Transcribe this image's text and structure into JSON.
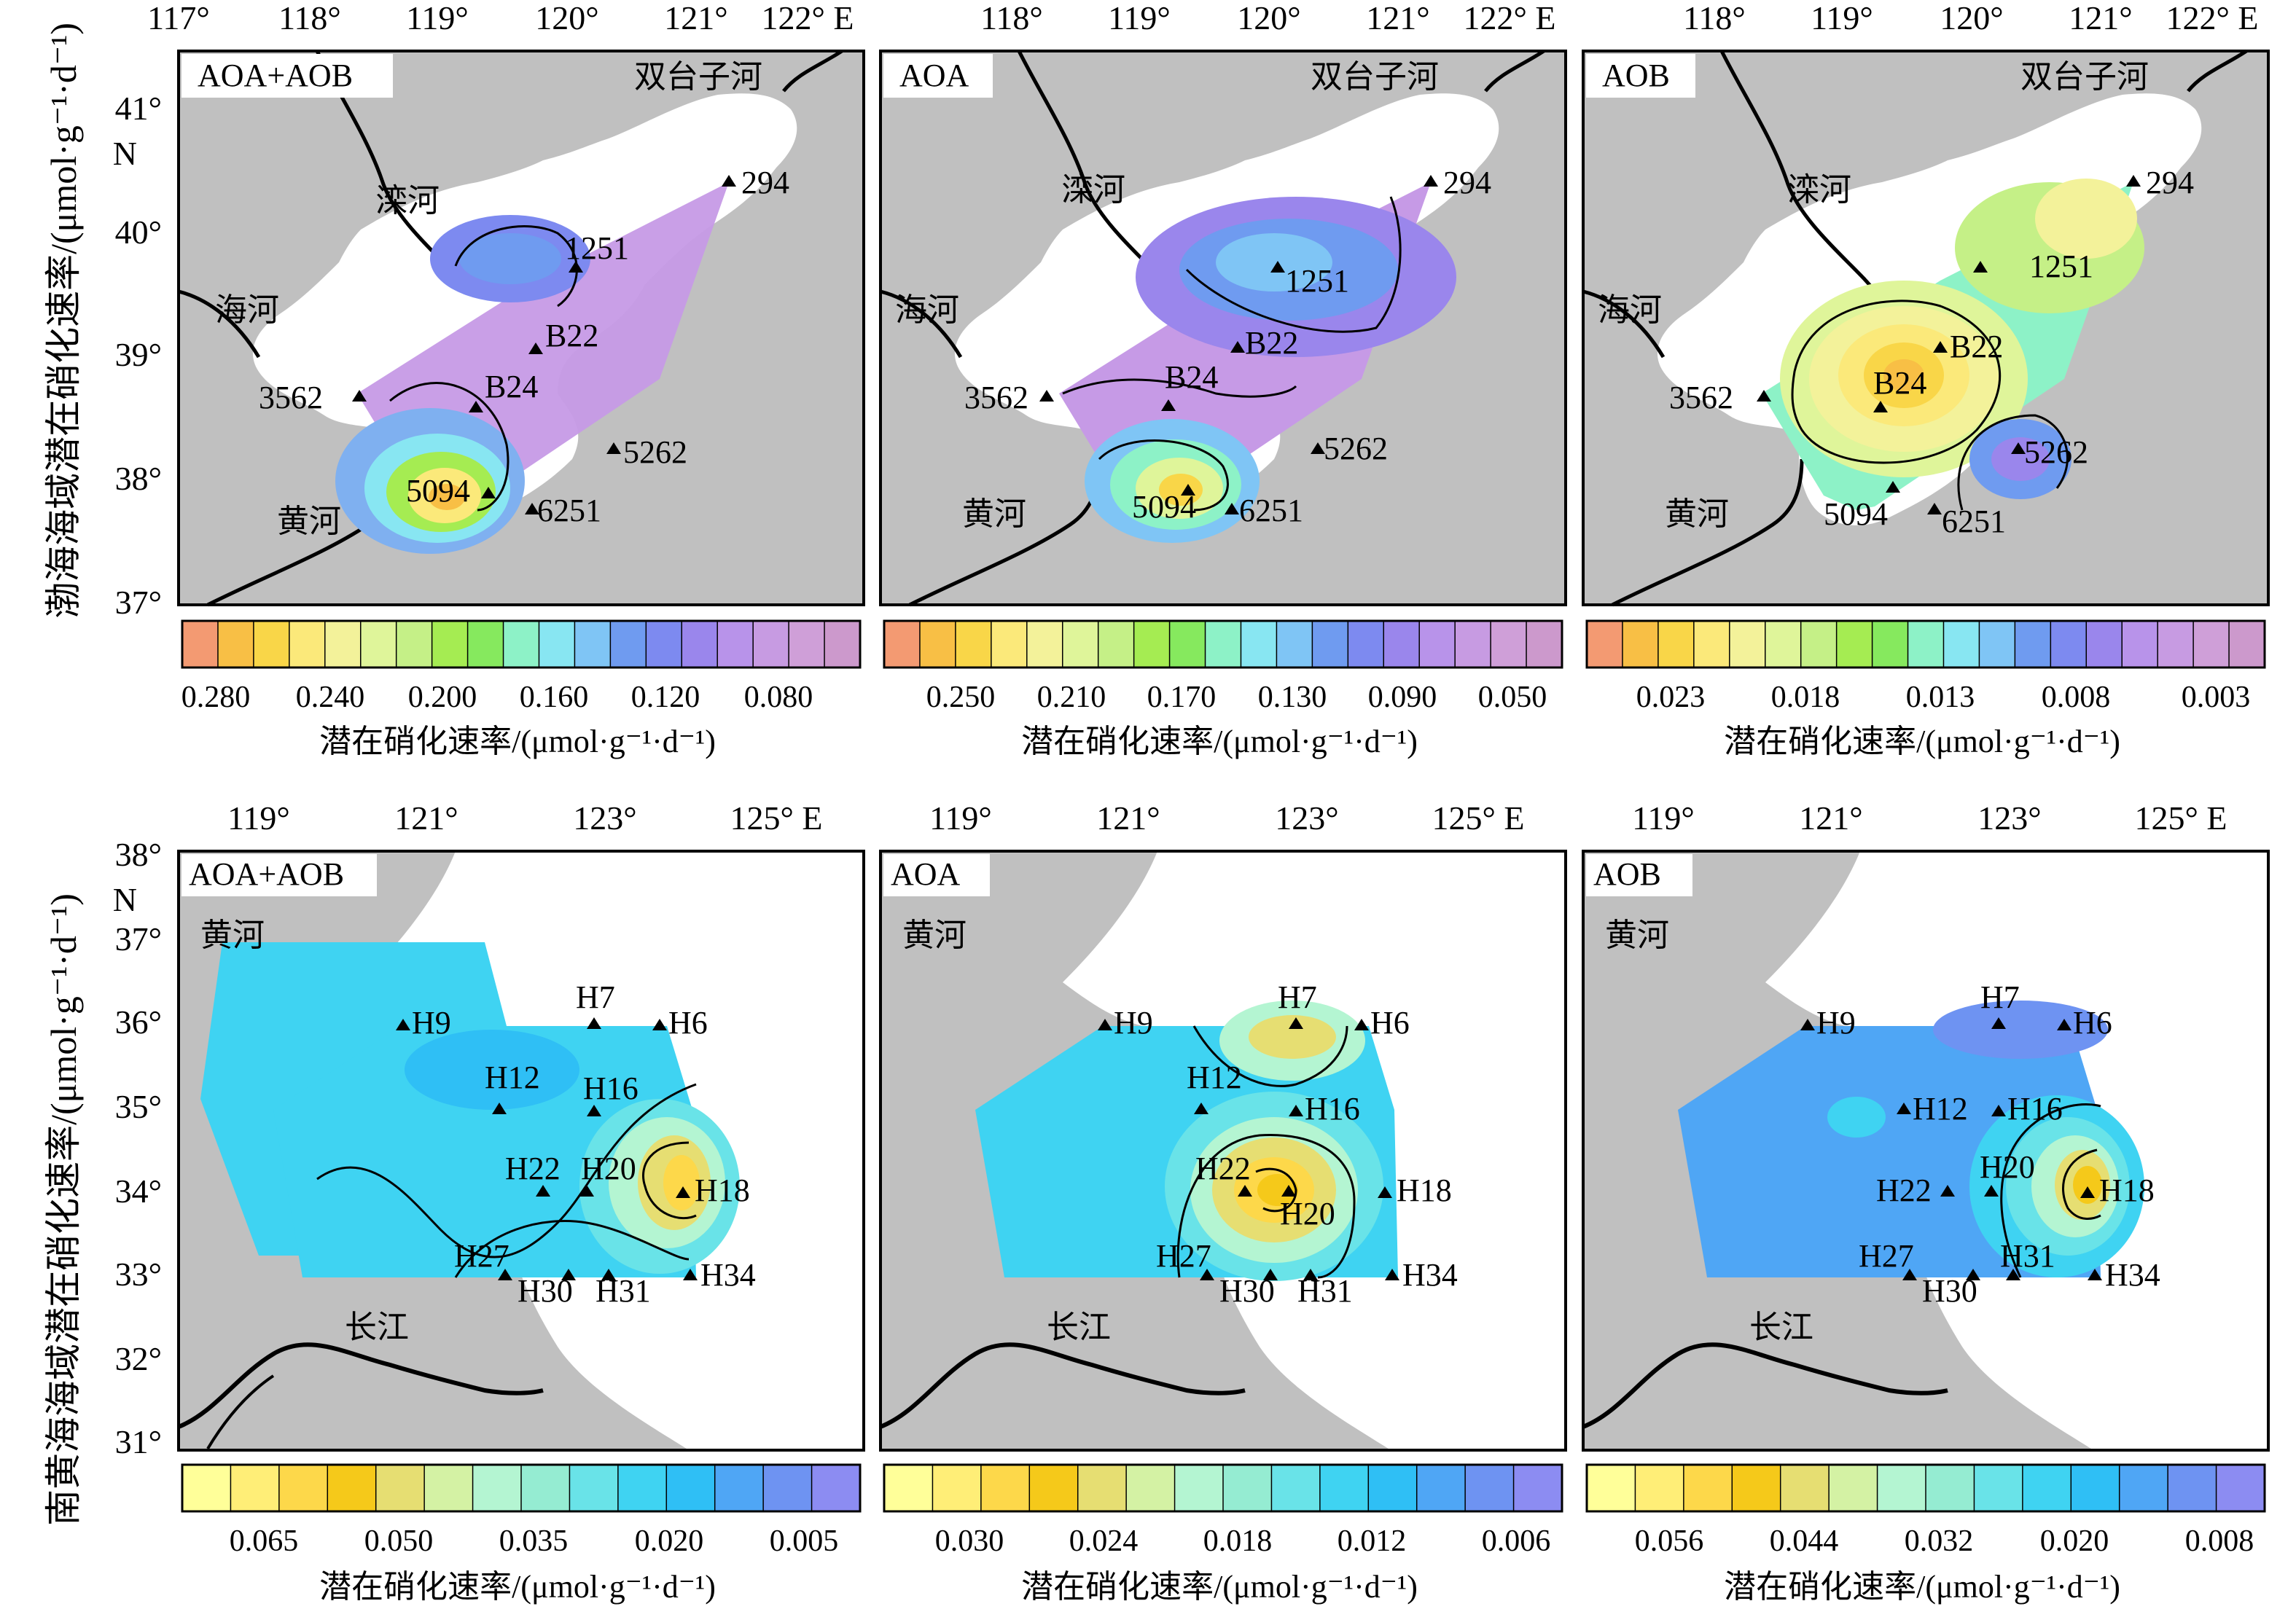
{
  "row1": {
    "ylabel": "渤海海域潜在硝化速率/(μmol·g⁻¹·d⁻¹)",
    "lon_ticks": [
      "117°",
      "118°",
      "119°",
      "120°",
      "121°",
      "122° E"
    ],
    "lat_ticks": [
      "41°",
      "N",
      "40°",
      "39°",
      "38°",
      "37°"
    ],
    "rivers": [
      {
        "name": "双台子河"
      },
      {
        "name": "滦河"
      },
      {
        "name": "海河"
      },
      {
        "name": "黄河"
      }
    ],
    "stations": [
      {
        "name": "294"
      },
      {
        "name": "1251"
      },
      {
        "name": "B22"
      },
      {
        "name": "B24"
      },
      {
        "name": "3562"
      },
      {
        "name": "5262"
      },
      {
        "name": "5094"
      },
      {
        "name": "6251"
      }
    ],
    "panels": [
      {
        "title": "AOA+AOB",
        "cb_ticks": [
          "0.280",
          "0.240",
          "0.200",
          "0.160",
          "0.120",
          "0.080"
        ]
      },
      {
        "title": "AOA",
        "cb_ticks": [
          "0.250",
          "0.210",
          "0.170",
          "0.130",
          "0.090",
          "0.050"
        ]
      },
      {
        "title": "AOB",
        "cb_ticks": [
          "0.023",
          "0.018",
          "0.013",
          "0.008",
          "0.003"
        ]
      }
    ]
  },
  "row2": {
    "ylabel": "南黄海海域潜在硝化速率/(μmol·g⁻¹·d⁻¹)",
    "lon_ticks": [
      "119°",
      "121°",
      "123°",
      "125° E"
    ],
    "lat_ticks": [
      "38°",
      "N",
      "37°",
      "36°",
      "35°",
      "34°",
      "33°",
      "32°",
      "31°"
    ],
    "rivers": [
      {
        "name": "黄河"
      },
      {
        "name": "长江"
      }
    ],
    "stations": [
      {
        "name": "H9"
      },
      {
        "name": "H7"
      },
      {
        "name": "H6"
      },
      {
        "name": "H12"
      },
      {
        "name": "H16"
      },
      {
        "name": "H22"
      },
      {
        "name": "H20"
      },
      {
        "name": "H18"
      },
      {
        "name": "H27"
      },
      {
        "name": "H30"
      },
      {
        "name": "H31"
      },
      {
        "name": "H34"
      }
    ],
    "panels": [
      {
        "title": "AOA+AOB",
        "cb_ticks": [
          "0.065",
          "0.050",
          "0.035",
          "0.020",
          "0.005"
        ]
      },
      {
        "title": "AOA",
        "cb_ticks": [
          "0.030",
          "0.024",
          "0.018",
          "0.012",
          "0.006"
        ]
      },
      {
        "title": "AOB",
        "cb_ticks": [
          "0.056",
          "0.044",
          "0.032",
          "0.020",
          "0.008"
        ]
      }
    ]
  },
  "colorbar_title": "潜在硝化速率/(μmol·g⁻¹·d⁻¹)",
  "colors": {
    "land": "#c0c0c0",
    "sea": "#ffffff",
    "cb_row1": [
      "#f39a72",
      "#f8bf45",
      "#f9d648",
      "#fbe97a",
      "#f3f29a",
      "#dff59a",
      "#c5f087",
      "#a5ec52",
      "#86e95e",
      "#8df2c7",
      "#88e6f2",
      "#7fc5f5",
      "#6f9bf0",
      "#7d8af0",
      "#9a86ec",
      "#b893ea",
      "#c79be2",
      "#cf9fd8",
      "#cc99cc"
    ],
    "cb_row2": [
      "#ffff99",
      "#ffee77",
      "#fdd84a",
      "#f5c91a",
      "#e6de72",
      "#d4f2a4",
      "#b4f5d2",
      "#95ecd2",
      "#69e3e8",
      "#3fd3f2",
      "#2fbff5",
      "#4fa6f5",
      "#6e93f2",
      "#8c8cf2"
    ]
  }
}
